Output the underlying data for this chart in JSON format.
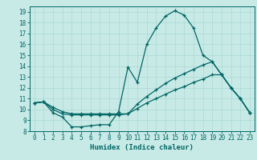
{
  "xlabel": "Humidex (Indice chaleur)",
  "bg_color": "#c8eae6",
  "line_color": "#006666",
  "grid_color": "#aad8d4",
  "xlim": [
    -0.5,
    23.5
  ],
  "ylim": [
    8,
    19.5
  ],
  "xticks": [
    0,
    1,
    2,
    3,
    4,
    5,
    6,
    7,
    8,
    9,
    10,
    11,
    12,
    13,
    14,
    15,
    16,
    17,
    18,
    19,
    20,
    21,
    22,
    23
  ],
  "yticks": [
    8,
    9,
    10,
    11,
    12,
    13,
    14,
    15,
    16,
    17,
    18,
    19
  ],
  "line1_x": [
    0,
    1,
    2,
    3,
    4,
    5,
    6,
    7,
    8,
    9,
    10,
    11,
    12,
    13,
    14,
    15,
    16,
    17,
    18,
    19,
    20,
    21,
    22,
    23
  ],
  "line1_y": [
    10.6,
    10.7,
    9.7,
    9.3,
    8.4,
    8.4,
    8.5,
    8.6,
    8.6,
    9.8,
    13.9,
    12.5,
    16.0,
    17.5,
    18.6,
    19.1,
    18.7,
    17.5,
    15.0,
    14.4,
    13.2,
    12.0,
    11.0,
    9.7
  ],
  "line2_x": [
    0,
    1,
    2,
    3,
    4,
    5,
    6,
    7,
    8,
    9,
    10,
    11,
    12,
    13,
    14,
    15,
    16,
    17,
    18,
    19,
    20,
    21,
    22,
    23
  ],
  "line2_y": [
    10.6,
    10.7,
    10.0,
    9.6,
    9.5,
    9.5,
    9.5,
    9.5,
    9.5,
    9.5,
    9.6,
    10.5,
    11.2,
    11.8,
    12.4,
    12.9,
    13.3,
    13.7,
    14.1,
    14.4,
    13.2,
    12.0,
    11.0,
    9.7
  ],
  "line3_x": [
    0,
    1,
    2,
    3,
    4,
    5,
    6,
    7,
    8,
    9,
    10,
    11,
    12,
    13,
    14,
    15,
    16,
    17,
    18,
    19,
    20,
    21,
    22,
    23
  ],
  "line3_y": [
    10.6,
    10.7,
    10.2,
    9.8,
    9.6,
    9.6,
    9.6,
    9.6,
    9.6,
    9.6,
    9.6,
    10.1,
    10.6,
    11.0,
    11.4,
    11.8,
    12.1,
    12.5,
    12.8,
    13.2,
    13.2,
    12.0,
    11.0,
    9.7
  ],
  "markersize": 3,
  "linewidth": 0.9,
  "tick_labelsize": 5.5,
  "xlabel_fontsize": 6.5
}
